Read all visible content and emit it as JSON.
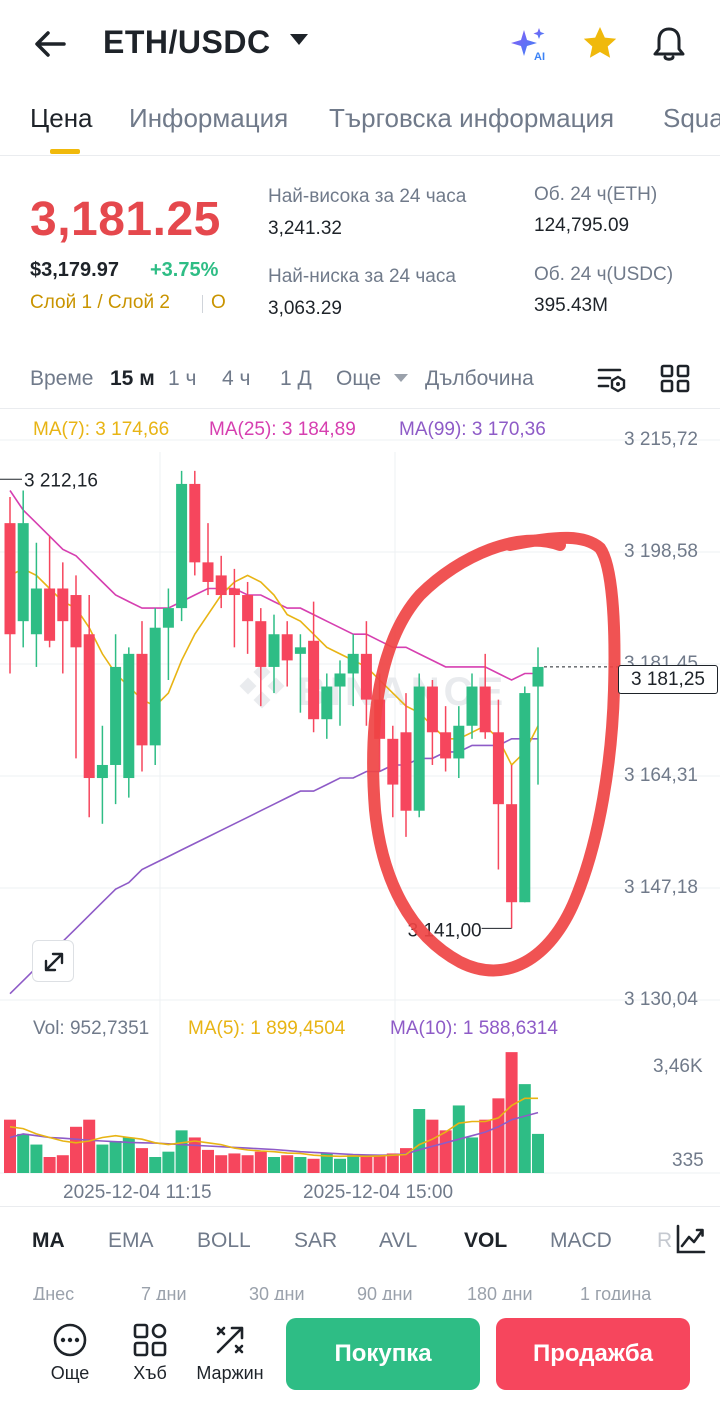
{
  "header": {
    "pair": "ETH/USDC",
    "icons": [
      "back-arrow-icon",
      "ai-sparkle-icon",
      "star-icon",
      "bell-icon"
    ],
    "ai_badge": "AI"
  },
  "tabs": [
    {
      "label": "Цена",
      "active": true
    },
    {
      "label": "Информация"
    },
    {
      "label": "Търговска информация"
    },
    {
      "label": "Squa"
    }
  ],
  "ticker": {
    "last_price": "3,181.25",
    "usd_price": "$3,179.97",
    "change": "+3.75%",
    "layer": "Слой 1 / Слой 2",
    "layer_o": "О",
    "high_label": "Най-висока за 24 часа",
    "high_value": "3,241.32",
    "low_label": "Най-ниска за 24 часа",
    "low_value": "3,063.29",
    "vol_eth_label": "Об. 24 ч(ETH)",
    "vol_eth_value": "124,795.09",
    "vol_usdc_label": "Об. 24 ч(USDC)",
    "vol_usdc_value": "395.43M"
  },
  "timeframes": {
    "label": "Време",
    "items": [
      "15 м",
      "1 ч",
      "4 ч",
      "1 Д"
    ],
    "active": "15 м",
    "more": "Още",
    "depth": "Дълбочина"
  },
  "ma_legend": {
    "ma7": "MA(7): 3 174,66",
    "ma25": "MA(25): 3 184,89",
    "ma99": "MA(99): 3 170,36"
  },
  "colors": {
    "up": "#2ebd85",
    "down": "#f6465d",
    "ma7": "#e8b414",
    "ma25": "#d63fb0",
    "ma99": "#8e5bc7",
    "annotation": "#ef4444"
  },
  "chart_data": {
    "type": "candlestick",
    "interval": "15 м",
    "y_axis_labels": [
      "3 215,72",
      "3 198,58",
      "3 181,45",
      "3 164,31",
      "3 147,18",
      "3 130,04"
    ],
    "ylim": [
      3130.04,
      3215.72
    ],
    "current_price": "3 181,25",
    "high_marker": "3 212,16",
    "low_marker": "3 141,00",
    "watermark": "BINANCE",
    "x_labels": [
      "2025-12-04 11:15",
      "2025-12-04 15:00"
    ],
    "candles": [
      {
        "o": 3203,
        "h": 3207,
        "l": 3180,
        "c": 3186
      },
      {
        "o": 3188,
        "h": 3208,
        "l": 3184,
        "c": 3203
      },
      {
        "o": 3186,
        "h": 3200,
        "l": 3181,
        "c": 3193
      },
      {
        "o": 3193,
        "h": 3201,
        "l": 3184,
        "c": 3185
      },
      {
        "o": 3193,
        "h": 3197,
        "l": 3180,
        "c": 3188
      },
      {
        "o": 3192,
        "h": 3195,
        "l": 3167,
        "c": 3184
      },
      {
        "o": 3186,
        "h": 3192,
        "l": 3158,
        "c": 3164
      },
      {
        "o": 3164,
        "h": 3172,
        "l": 3157,
        "c": 3166
      },
      {
        "o": 3166,
        "h": 3186,
        "l": 3160,
        "c": 3181
      },
      {
        "o": 3164,
        "h": 3184,
        "l": 3161,
        "c": 3183
      },
      {
        "o": 3183,
        "h": 3188,
        "l": 3165,
        "c": 3169
      },
      {
        "o": 3169,
        "h": 3190,
        "l": 3166,
        "c": 3187
      },
      {
        "o": 3187,
        "h": 3193,
        "l": 3179,
        "c": 3190
      },
      {
        "o": 3190,
        "h": 3211,
        "l": 3188,
        "c": 3209
      },
      {
        "o": 3209,
        "h": 3211,
        "l": 3195,
        "c": 3197
      },
      {
        "o": 3197,
        "h": 3203,
        "l": 3192,
        "c": 3194
      },
      {
        "o": 3195,
        "h": 3198,
        "l": 3190,
        "c": 3192
      },
      {
        "o": 3193,
        "h": 3196,
        "l": 3184,
        "c": 3192
      },
      {
        "o": 3192,
        "h": 3194,
        "l": 3183,
        "c": 3188
      },
      {
        "o": 3188,
        "h": 3190,
        "l": 3175,
        "c": 3181
      },
      {
        "o": 3181,
        "h": 3189,
        "l": 3177,
        "c": 3186
      },
      {
        "o": 3186,
        "h": 3188,
        "l": 3178,
        "c": 3182
      },
      {
        "o": 3183,
        "h": 3186,
        "l": 3174,
        "c": 3184
      },
      {
        "o": 3185,
        "h": 3191,
        "l": 3171,
        "c": 3173
      },
      {
        "o": 3173,
        "h": 3180,
        "l": 3170,
        "c": 3178
      },
      {
        "o": 3178,
        "h": 3182,
        "l": 3172,
        "c": 3180
      },
      {
        "o": 3180,
        "h": 3186,
        "l": 3175,
        "c": 3183
      },
      {
        "o": 3183,
        "h": 3188,
        "l": 3172,
        "c": 3176
      },
      {
        "o": 3176,
        "h": 3180,
        "l": 3165,
        "c": 3170
      },
      {
        "o": 3170,
        "h": 3172,
        "l": 3158,
        "c": 3163
      },
      {
        "o": 3171,
        "h": 3177,
        "l": 3155,
        "c": 3159
      },
      {
        "o": 3159,
        "h": 3180,
        "l": 3158,
        "c": 3178
      },
      {
        "o": 3178,
        "h": 3179,
        "l": 3166,
        "c": 3171
      },
      {
        "o": 3171,
        "h": 3175,
        "l": 3165,
        "c": 3167
      },
      {
        "o": 3167,
        "h": 3175,
        "l": 3164,
        "c": 3172
      },
      {
        "o": 3172,
        "h": 3180,
        "l": 3170,
        "c": 3178
      },
      {
        "o": 3178,
        "h": 3183,
        "l": 3170,
        "c": 3171
      },
      {
        "o": 3171,
        "h": 3176,
        "l": 3150,
        "c": 3160
      },
      {
        "o": 3160,
        "h": 3166,
        "l": 3141,
        "c": 3145
      },
      {
        "o": 3145,
        "h": 3178,
        "l": 3145,
        "c": 3177
      },
      {
        "o": 3178,
        "h": 3184,
        "l": 3163,
        "c": 3181
      }
    ],
    "ma7": [
      3195,
      3196,
      3195,
      3193,
      3191,
      3190,
      3187,
      3183,
      3180,
      3178,
      3176,
      3175,
      3177,
      3182,
      3186,
      3189,
      3192,
      3194,
      3195,
      3194,
      3192,
      3189,
      3188,
      3186,
      3184,
      3183,
      3182,
      3181,
      3179,
      3177,
      3175,
      3174,
      3172,
      3170,
      3170,
      3171,
      3172,
      3170,
      3166,
      3168,
      3172
    ],
    "ma25": [
      3208,
      3205,
      3203,
      3201,
      3199,
      3198,
      3196,
      3194,
      3192,
      3191,
      3190,
      3190,
      3190,
      3191,
      3192,
      3193,
      3193,
      3193,
      3192,
      3192,
      3191,
      3190,
      3190,
      3189,
      3188,
      3187,
      3186,
      3186,
      3185,
      3184,
      3184,
      3183,
      3182,
      3181,
      3181,
      3181,
      3181,
      3180,
      3179,
      3180,
      3180
    ],
    "ma99": [
      3131,
      3133,
      3135,
      3137,
      3139,
      3141,
      3143,
      3145,
      3147,
      3148,
      3150,
      3151,
      3152,
      3153,
      3154,
      3155,
      3156,
      3157,
      3158,
      3159,
      3160,
      3161,
      3162,
      3162,
      3163,
      3164,
      3164,
      3165,
      3165,
      3166,
      3166,
      3167,
      3167,
      3168,
      3168,
      3169,
      3169,
      3169,
      3170,
      3170,
      3170
    ],
    "volume": {
      "legend_vol": "Vol: 952,7351",
      "legend_ma5": "MA(5): 1 899,4504",
      "legend_ma10": "MA(10): 1 588,6314",
      "y_axis_labels": [
        "3,46K",
        "335"
      ],
      "values": [
        1500,
        1100,
        800,
        450,
        500,
        1300,
        1500,
        800,
        900,
        1000,
        700,
        450,
        600,
        1200,
        1000,
        650,
        500,
        550,
        500,
        600,
        450,
        500,
        450,
        400,
        550,
        400,
        500,
        450,
        500,
        550,
        700,
        1800,
        1500,
        1200,
        1900,
        1000,
        1500,
        2100,
        3400,
        2500,
        1100
      ],
      "ma5": [
        1300,
        1250,
        1100,
        1000,
        900,
        850,
        900,
        1000,
        1050,
        1000,
        950,
        850,
        800,
        850,
        900,
        850,
        800,
        700,
        650,
        620,
        600,
        560,
        550,
        500,
        480,
        470,
        480,
        470,
        480,
        500,
        520,
        800,
        950,
        1150,
        1400,
        1450,
        1450,
        1550,
        1900,
        2100,
        2100
      ],
      "ma10": [
        1000,
        1100,
        1050,
        1000,
        980,
        950,
        920,
        900,
        880,
        860,
        850,
        840,
        820,
        800,
        780,
        760,
        740,
        720,
        700,
        680,
        660,
        630,
        600,
        580,
        560,
        540,
        520,
        510,
        500,
        510,
        540,
        650,
        750,
        850,
        950,
        1050,
        1150,
        1300,
        1500,
        1600,
        1700
      ]
    }
  },
  "indicators": {
    "items": [
      "MA",
      "EMA",
      "BOLL",
      "SAR",
      "AVL",
      "VOL",
      "MACD",
      "R"
    ],
    "active_main": "MA",
    "active_sub": "VOL"
  },
  "periods": [
    "Днес",
    "7 дни",
    "30 дни",
    "90 дни",
    "180 дни",
    "1 година"
  ],
  "bottom": {
    "more": "Още",
    "grid": "Хъб",
    "margin": "Маржин",
    "buy": "Покупка",
    "sell": "Продажба"
  }
}
